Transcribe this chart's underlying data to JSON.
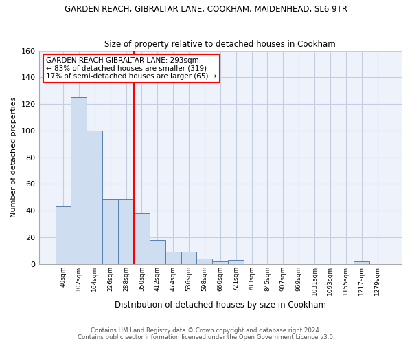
{
  "title1": "GARDEN REACH, GIBRALTAR LANE, COOKHAM, MAIDENHEAD, SL6 9TR",
  "title2": "Size of property relative to detached houses in Cookham",
  "xlabel": "Distribution of detached houses by size in Cookham",
  "ylabel": "Number of detached properties",
  "categories": [
    "40sqm",
    "102sqm",
    "164sqm",
    "226sqm",
    "288sqm",
    "350sqm",
    "412sqm",
    "474sqm",
    "536sqm",
    "598sqm",
    "660sqm",
    "721sqm",
    "783sqm",
    "845sqm",
    "907sqm",
    "969sqm",
    "1031sqm",
    "1093sqm",
    "1155sqm",
    "1217sqm",
    "1279sqm"
  ],
  "values": [
    43,
    125,
    100,
    49,
    49,
    38,
    18,
    9,
    9,
    4,
    2,
    3,
    0,
    0,
    0,
    0,
    0,
    0,
    0,
    2,
    0
  ],
  "bar_color": "#cfddf0",
  "bar_edge_color": "#5580b0",
  "annotation_text": "GARDEN REACH GIBRALTAR LANE: 293sqm\n← 83% of detached houses are smaller (319)\n17% of semi-detached houses are larger (65) →",
  "annotation_box_color": "white",
  "annotation_box_edge_color": "red",
  "vline_color": "red",
  "vline_x_index": 4.5,
  "ylim": [
    0,
    160
  ],
  "yticks": [
    0,
    20,
    40,
    60,
    80,
    100,
    120,
    140,
    160
  ],
  "footer1": "Contains HM Land Registry data © Crown copyright and database right 2024.",
  "footer2": "Contains public sector information licensed under the Open Government Licence v3.0.",
  "bg_color": "#eef2fb",
  "grid_color": "#c5cde0"
}
